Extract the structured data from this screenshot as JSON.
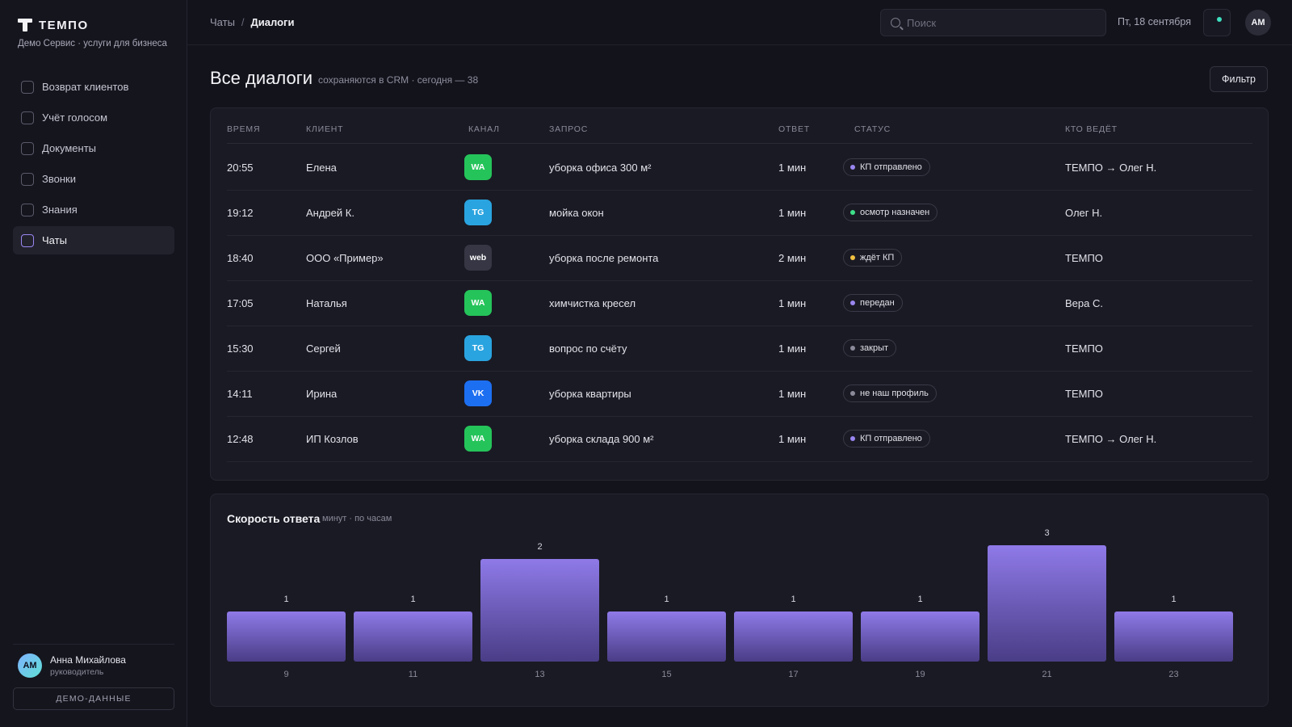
{
  "brand": {
    "name": "ТЕМПО",
    "subtitle": "Демо Сервис · услуги для бизнеса"
  },
  "nav": [
    {
      "label": "Возврат клиентов",
      "active": false
    },
    {
      "label": "Учёт голосом",
      "active": false
    },
    {
      "label": "Документы",
      "active": false
    },
    {
      "label": "Звонки",
      "active": false
    },
    {
      "label": "Знания",
      "active": false
    },
    {
      "label": "Чаты",
      "active": true
    }
  ],
  "user": {
    "initials": "АМ",
    "name": "Анна Михайлова",
    "role": "руководитель"
  },
  "demo_label": "ДЕМО-ДАННЫЕ",
  "breadcrumb": {
    "parent": "Чаты",
    "separator": "/",
    "current": "Диалоги"
  },
  "search": {
    "placeholder": "Поиск",
    "value": ""
  },
  "date": "Пт, 18 сентября",
  "top_avatar": "АМ",
  "page": {
    "title": "Все диалоги",
    "subtitle": "сохраняются в CRM · сегодня — 38",
    "filter_label": "Фильтр"
  },
  "table": {
    "headers": {
      "time": "ВРЕМЯ",
      "client": "КЛИЕНТ",
      "channel": "КАНАЛ",
      "request": "ЗАПРОС",
      "reply": "ОТВЕТ",
      "status": "СТАТУС",
      "owner": "КТО ВЕДЁТ"
    },
    "rows": [
      {
        "time": "20:55",
        "client": "Елена",
        "channel": "WA",
        "request": "уборка офиса 300 м²",
        "reply": "1 мин",
        "status": "КП отправлено",
        "status_color": "#9a86f0",
        "owner": "ТЕМПО → Олег Н."
      },
      {
        "time": "19:12",
        "client": "Андрей К.",
        "channel": "TG",
        "request": "мойка окон",
        "reply": "1 мин",
        "status": "осмотр назначен",
        "status_color": "#3ee08a",
        "owner": "Олег Н."
      },
      {
        "time": "18:40",
        "client": "ООО «Пример»",
        "channel": "web",
        "request": "уборка после ремонта",
        "reply": "2 мин",
        "status": "ждёт КП",
        "status_color": "#f0c040",
        "owner": "ТЕМПО"
      },
      {
        "time": "17:05",
        "client": "Наталья",
        "channel": "WA",
        "request": "химчистка кресел",
        "reply": "1 мин",
        "status": "передан",
        "status_color": "#9a86f0",
        "owner": "Вера С."
      },
      {
        "time": "15:30",
        "client": "Сергей",
        "channel": "TG",
        "request": "вопрос по счёту",
        "reply": "1 мин",
        "status": "закрыт",
        "status_color": "#8a8a9a",
        "owner": "ТЕМПО"
      },
      {
        "time": "14:11",
        "client": "Ирина",
        "channel": "VK",
        "request": "уборка квартиры",
        "reply": "1 мин",
        "status": "не наш профиль",
        "status_color": "#8a8a9a",
        "owner": "ТЕМПО"
      },
      {
        "time": "12:48",
        "client": "ИП Козлов",
        "channel": "WA",
        "request": "уборка склада 900 м²",
        "reply": "1 мин",
        "status": "КП отправлено",
        "status_color": "#9a86f0",
        "owner": "ТЕМПО → Олег Н."
      }
    ]
  },
  "channel_colors": {
    "WA": "#25c45a",
    "TG": "#2aa4e0",
    "web": "#363644",
    "VK": "#1d6ff2"
  },
  "chart_data": {
    "type": "bar",
    "title": "Скорость ответа",
    "subtitle": "минут · по часам",
    "categories": [
      "9",
      "11",
      "13",
      "15",
      "17",
      "19",
      "21",
      "23"
    ],
    "values": [
      1,
      1,
      2,
      1,
      1,
      1,
      3,
      1
    ],
    "bar_color_top": "#8f7ae8",
    "bar_color_bottom": "#4a3d86"
  }
}
